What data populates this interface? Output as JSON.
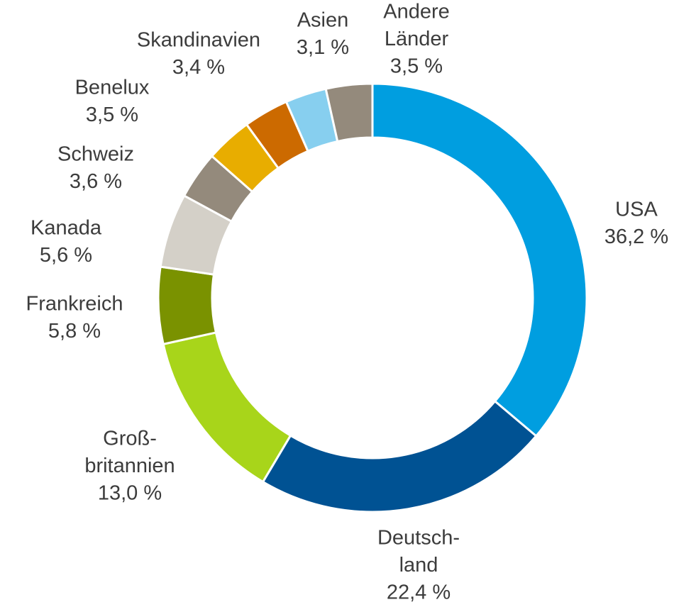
{
  "chart_data": {
    "type": "donut",
    "categories": [
      [
        "USA"
      ],
      [
        "Deutsch-",
        "land"
      ],
      [
        "Groß-",
        "britannien"
      ],
      [
        "Frankreich"
      ],
      [
        "Kanada"
      ],
      [
        "Schweiz"
      ],
      [
        "Benelux"
      ],
      [
        "Skandinavien"
      ],
      [
        "Asien"
      ],
      [
        "Andere",
        "Länder"
      ]
    ],
    "values": [
      36.2,
      22.4,
      13.0,
      5.8,
      5.6,
      3.6,
      3.5,
      3.4,
      3.1,
      3.5
    ],
    "value_labels": [
      "36,2 %",
      "22,4 %",
      "13,0 %",
      "5,8 %",
      "5,6 %",
      "3,6 %",
      "3,5 %",
      "3,4 %",
      "3,1 %",
      "3,5 %"
    ],
    "colors": [
      "#009ee0",
      "#005293",
      "#a8d51a",
      "#7a9200",
      "#d4d0c8",
      "#948a7c",
      "#e8ad00",
      "#cc6a00",
      "#87cfef",
      "#948a7c"
    ]
  }
}
